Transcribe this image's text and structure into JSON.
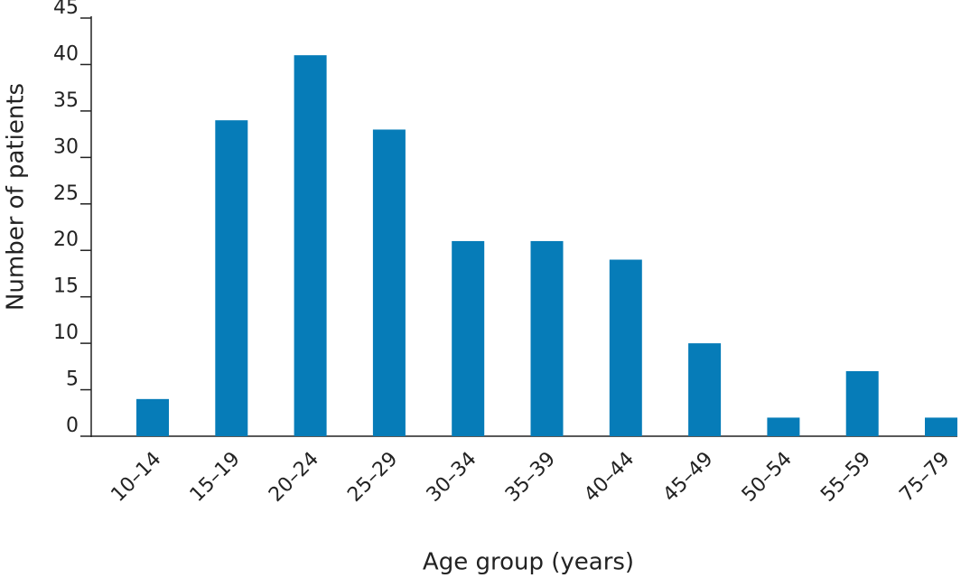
{
  "chart_data": {
    "type": "bar",
    "x_label": "Age group (years)",
    "y_label": "Number of patients",
    "categories": [
      "10–14",
      "15–19",
      "20–24",
      "25–29",
      "30–34",
      "35–39",
      "40–44",
      "45–49",
      "50–54",
      "55–59",
      "75–79"
    ],
    "values": [
      4,
      34,
      41,
      33,
      21,
      21,
      19,
      10,
      2,
      7,
      2
    ],
    "color": "#067cb8",
    "ylim": [
      0,
      45
    ],
    "yticks": [
      0,
      5,
      10,
      15,
      20,
      25,
      30,
      35,
      40,
      45
    ]
  }
}
